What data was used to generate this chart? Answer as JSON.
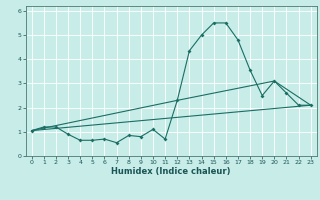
{
  "xlabel": "Humidex (Indice chaleur)",
  "bg_color": "#c8ece8",
  "grid_color": "#ffffff",
  "line_color": "#1a6e64",
  "xlim": [
    -0.5,
    23.5
  ],
  "ylim": [
    0,
    6.2
  ],
  "xticks": [
    0,
    1,
    2,
    3,
    4,
    5,
    6,
    7,
    8,
    9,
    10,
    11,
    12,
    13,
    14,
    15,
    16,
    17,
    18,
    19,
    20,
    21,
    22,
    23
  ],
  "yticks": [
    0,
    1,
    2,
    3,
    4,
    5,
    6
  ],
  "line1_x": [
    0,
    1,
    2,
    3,
    4,
    5,
    6,
    7,
    8,
    9,
    10,
    11,
    12,
    13,
    14,
    15,
    16,
    17,
    18,
    19,
    20,
    21,
    22,
    23
  ],
  "line1_y": [
    1.05,
    1.2,
    1.2,
    0.9,
    0.65,
    0.65,
    0.7,
    0.55,
    0.85,
    0.8,
    1.1,
    0.7,
    2.3,
    4.35,
    5.0,
    5.5,
    5.5,
    4.8,
    3.55,
    2.5,
    3.1,
    2.6,
    2.1,
    2.1
  ],
  "line2_x": [
    0,
    23
  ],
  "line2_y": [
    1.05,
    2.1
  ],
  "line3_x": [
    0,
    12,
    20,
    23
  ],
  "line3_y": [
    1.05,
    2.3,
    3.1,
    2.1
  ]
}
